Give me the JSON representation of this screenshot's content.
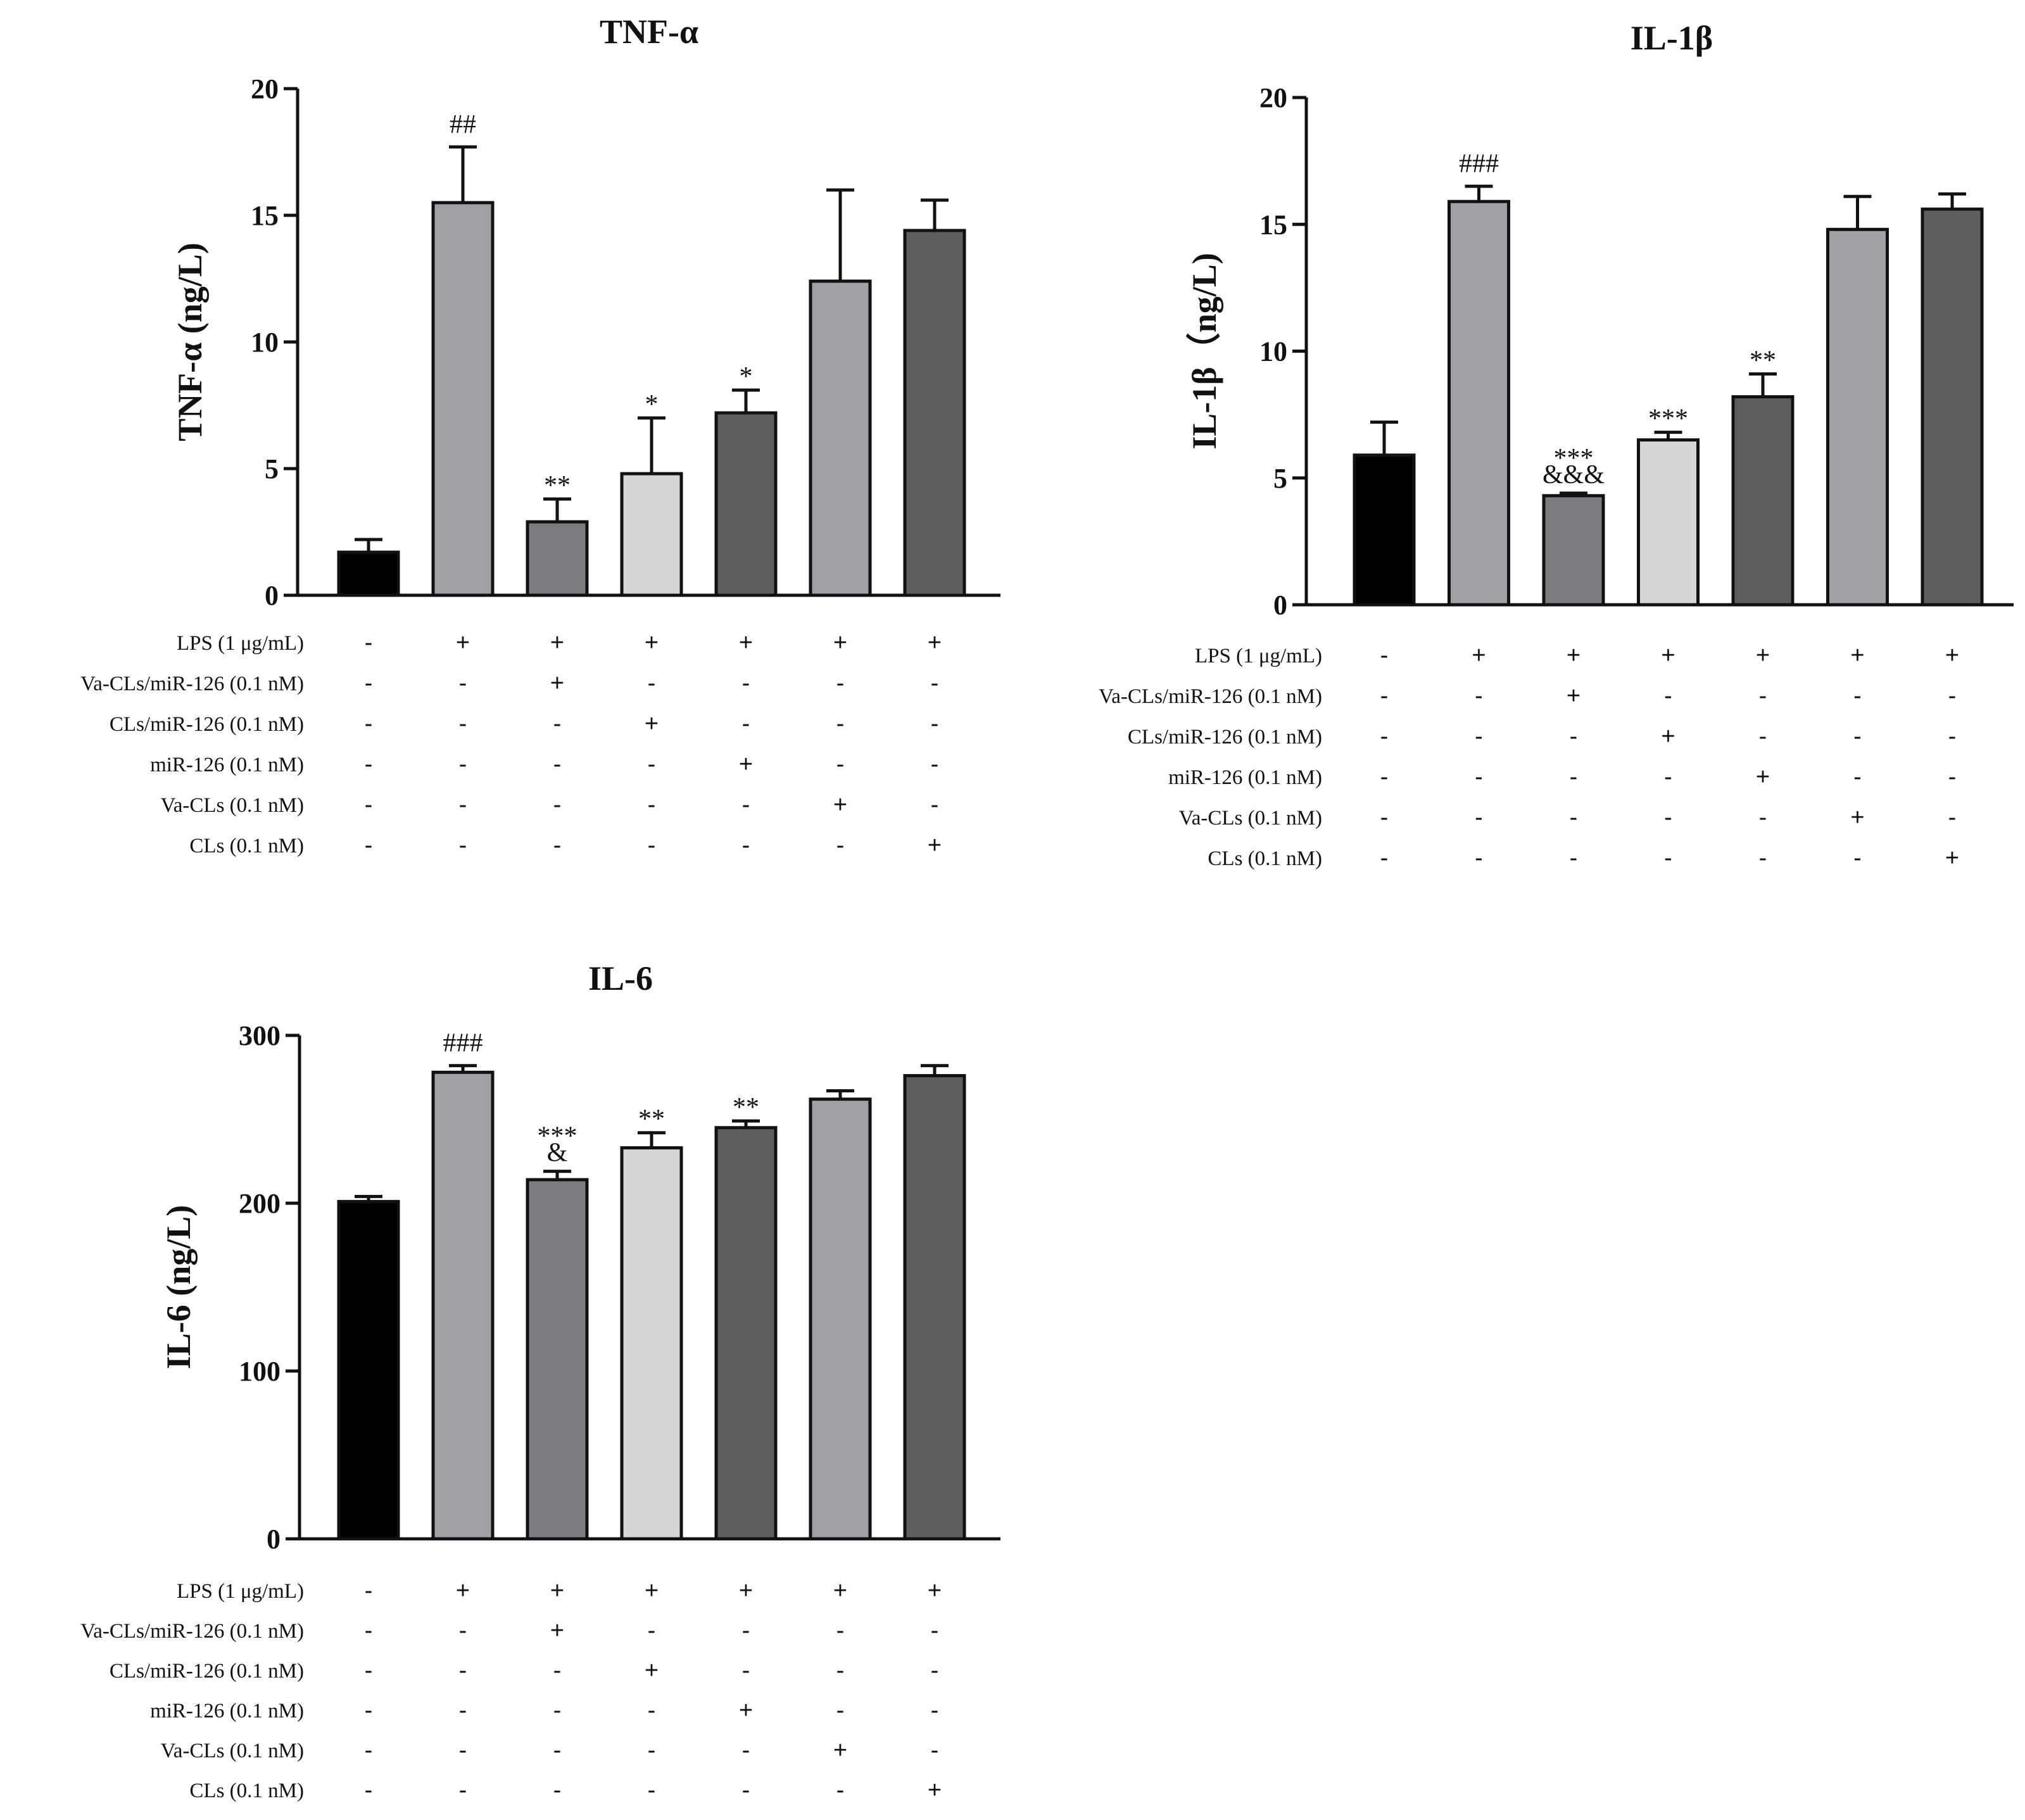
{
  "chart_data": [
    {
      "type": "bar",
      "title": "TNF-α",
      "ylabel": "TNF-α (ng/L)",
      "ylim": [
        0,
        20
      ],
      "yticks": [
        0,
        5,
        10,
        15,
        20
      ],
      "values": [
        1.7,
        15.5,
        2.9,
        4.8,
        7.2,
        12.4,
        14.4
      ],
      "errors": [
        0.5,
        2.2,
        0.9,
        2.2,
        0.9,
        3.6,
        1.2
      ],
      "colors": [
        "#000000",
        "#9fa1a5",
        "#7b7c7f",
        "#d5d7d6",
        "#5e5e60",
        "#9fa1a5",
        "#5e5e60"
      ],
      "annotations": [
        [
          "",
          ""
        ],
        [
          "##",
          ""
        ],
        [
          "**",
          ""
        ],
        [
          "*",
          ""
        ],
        [
          "*",
          ""
        ],
        [
          "",
          ""
        ],
        [
          "",
          ""
        ]
      ],
      "conditions": [
        {
          "label": "LPS (1 μg/mL)",
          "signs": [
            "-",
            "+",
            "+",
            "+",
            "+",
            "+",
            "+"
          ]
        },
        {
          "label": "Va-CLs/miR-126 (0.1 nM)",
          "signs": [
            "-",
            "-",
            "+",
            "-",
            "-",
            "-",
            "-"
          ]
        },
        {
          "label": "CLs/miR-126 (0.1 nM)",
          "signs": [
            "-",
            "-",
            "-",
            "+",
            "-",
            "-",
            "-"
          ]
        },
        {
          "label": "miR-126 (0.1 nM)",
          "signs": [
            "-",
            "-",
            "-",
            "-",
            "+",
            "-",
            "-"
          ]
        },
        {
          "label": "Va-CLs (0.1 nM)",
          "signs": [
            "-",
            "-",
            "-",
            "-",
            "-",
            "+",
            "-"
          ]
        },
        {
          "label": "CLs (0.1 nM)",
          "signs": [
            "-",
            "-",
            "-",
            "-",
            "-",
            "-",
            "+"
          ]
        }
      ]
    },
    {
      "type": "bar",
      "title": "IL-1β",
      "ylabel": "IL-1β（ng/L)",
      "ylim": [
        0,
        20
      ],
      "yticks": [
        0,
        5,
        10,
        15,
        20
      ],
      "values": [
        5.9,
        15.9,
        4.3,
        6.5,
        8.2,
        14.8,
        15.6
      ],
      "errors": [
        1.3,
        0.6,
        0.1,
        0.3,
        0.9,
        1.3,
        0.6
      ],
      "colors": [
        "#000000",
        "#9fa1a5",
        "#7b7c7f",
        "#d5d7d6",
        "#5e5e60",
        "#9fa1a5",
        "#5e5e60"
      ],
      "annotations": [
        [
          "",
          ""
        ],
        [
          "###",
          ""
        ],
        [
          "***",
          "&&&"
        ],
        [
          "***",
          ""
        ],
        [
          "**",
          ""
        ],
        [
          "",
          ""
        ],
        [
          "",
          ""
        ]
      ],
      "conditions": [
        {
          "label": "LPS (1 μg/mL)",
          "signs": [
            "-",
            "+",
            "+",
            "+",
            "+",
            "+",
            "+"
          ]
        },
        {
          "label": "Va-CLs/miR-126 (0.1 nM)",
          "signs": [
            "-",
            "-",
            "+",
            "-",
            "-",
            "-",
            "-"
          ]
        },
        {
          "label": "CLs/miR-126 (0.1 nM)",
          "signs": [
            "-",
            "-",
            "-",
            "+",
            "-",
            "-",
            "-"
          ]
        },
        {
          "label": "miR-126 (0.1 nM)",
          "signs": [
            "-",
            "-",
            "-",
            "-",
            "+",
            "-",
            "-"
          ]
        },
        {
          "label": "Va-CLs (0.1 nM)",
          "signs": [
            "-",
            "-",
            "-",
            "-",
            "-",
            "+",
            "-"
          ]
        },
        {
          "label": "CLs (0.1 nM)",
          "signs": [
            "-",
            "-",
            "-",
            "-",
            "-",
            "-",
            "+"
          ]
        }
      ]
    },
    {
      "type": "bar",
      "title": "IL-6",
      "ylabel": "IL-6 (ng/L)",
      "ylim": [
        0,
        300
      ],
      "yticks": [
        0,
        100,
        200,
        300
      ],
      "values": [
        201,
        278,
        214,
        233,
        245,
        262,
        276
      ],
      "errors": [
        3,
        4,
        5,
        9,
        4,
        5,
        6
      ],
      "colors": [
        "#000000",
        "#9fa1a5",
        "#7b7c7f",
        "#d5d7d6",
        "#5e5e60",
        "#9fa1a5",
        "#5e5e60"
      ],
      "annotations": [
        [
          "",
          ""
        ],
        [
          "###",
          ""
        ],
        [
          "***",
          "&"
        ],
        [
          "**",
          ""
        ],
        [
          "**",
          ""
        ],
        [
          "",
          ""
        ],
        [
          "",
          ""
        ]
      ],
      "conditions": [
        {
          "label": "LPS (1 μg/mL)",
          "signs": [
            "-",
            "+",
            "+",
            "+",
            "+",
            "+",
            "+"
          ]
        },
        {
          "label": "Va-CLs/miR-126 (0.1 nM)",
          "signs": [
            "-",
            "-",
            "+",
            "-",
            "-",
            "-",
            "-"
          ]
        },
        {
          "label": "CLs/miR-126 (0.1 nM)",
          "signs": [
            "-",
            "-",
            "-",
            "+",
            "-",
            "-",
            "-"
          ]
        },
        {
          "label": "miR-126 (0.1 nM)",
          "signs": [
            "-",
            "-",
            "-",
            "-",
            "+",
            "-",
            "-"
          ]
        },
        {
          "label": "Va-CLs (0.1 nM)",
          "signs": [
            "-",
            "-",
            "-",
            "-",
            "-",
            "+",
            "-"
          ]
        },
        {
          "label": "CLs (0.1 nM)",
          "signs": [
            "-",
            "-",
            "-",
            "-",
            "-",
            "-",
            "+"
          ]
        }
      ]
    }
  ]
}
